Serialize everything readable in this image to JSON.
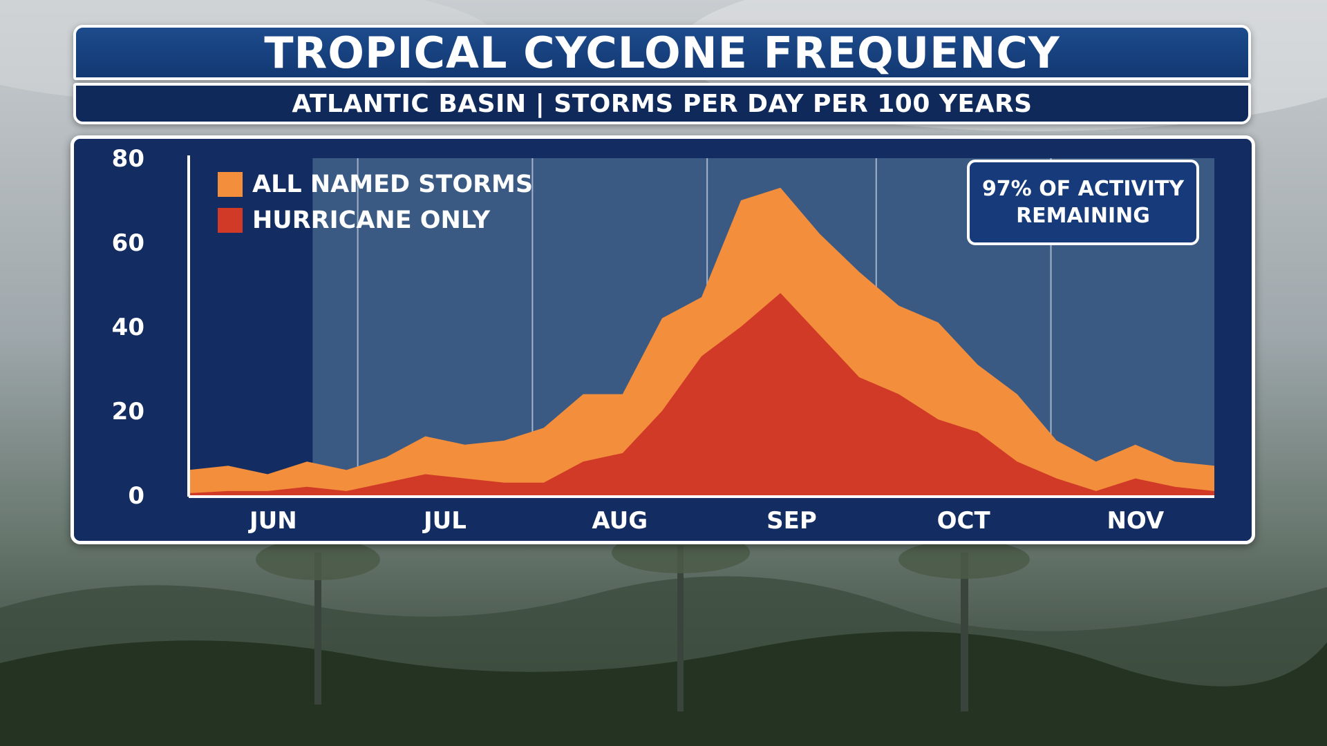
{
  "header": {
    "title": "TROPICAL CYCLONE FREQUENCY",
    "subtitle": "ATLANTIC BASIN | STORMS PER DAY PER 100 YEARS"
  },
  "callout": {
    "text": "97% OF ACTIVITY\nREMAINING"
  },
  "colors": {
    "named_storms": "#f28e3c",
    "hurricanes": "#d13a26",
    "panel": "#132d62",
    "shade": "#3f5f87"
  },
  "chart_data": {
    "type": "area",
    "title": "TROPICAL CYCLONE FREQUENCY",
    "subtitle": "ATLANTIC BASIN | STORMS PER DAY PER 100 YEARS",
    "xlabel": "",
    "ylabel": "",
    "x_ticks": [
      "JUN",
      "JUL",
      "AUG",
      "SEP",
      "OCT",
      "NOV"
    ],
    "y_ticks": [
      "0",
      "20",
      "40",
      "60",
      "80"
    ],
    "ylim": [
      0,
      80
    ],
    "xlim": [
      "Jun 1",
      "Nov 30"
    ],
    "legend_position": "top-left",
    "grid": "vertical lines at month boundaries",
    "elapsed_period_end": "Jun 23",
    "x": [
      "Jun 1",
      "Jun 8",
      "Jun 15",
      "Jun 22",
      "Jun 29",
      "Jul 6",
      "Jul 13",
      "Jul 20",
      "Jul 27",
      "Aug 3",
      "Aug 10",
      "Aug 17",
      "Aug 24",
      "Aug 31",
      "Sep 7",
      "Sep 14",
      "Sep 21",
      "Sep 28",
      "Oct 5",
      "Oct 12",
      "Oct 19",
      "Oct 26",
      "Nov 2",
      "Nov 9",
      "Nov 16",
      "Nov 23",
      "Nov 30"
    ],
    "series": [
      {
        "name": "ALL NAMED STORMS",
        "values": [
          6,
          7,
          5,
          8,
          6,
          9,
          14,
          12,
          13,
          16,
          24,
          24,
          42,
          47,
          70,
          73,
          62,
          53,
          45,
          41,
          31,
          24,
          13,
          8,
          12,
          8,
          7
        ]
      },
      {
        "name": "HURRICANE ONLY",
        "values": [
          0.5,
          1,
          1,
          2,
          1,
          3,
          5,
          4,
          3,
          3,
          8,
          10,
          20,
          33,
          40,
          48,
          38,
          28,
          24,
          18,
          15,
          8,
          4,
          1,
          4,
          2,
          1
        ]
      }
    ]
  }
}
